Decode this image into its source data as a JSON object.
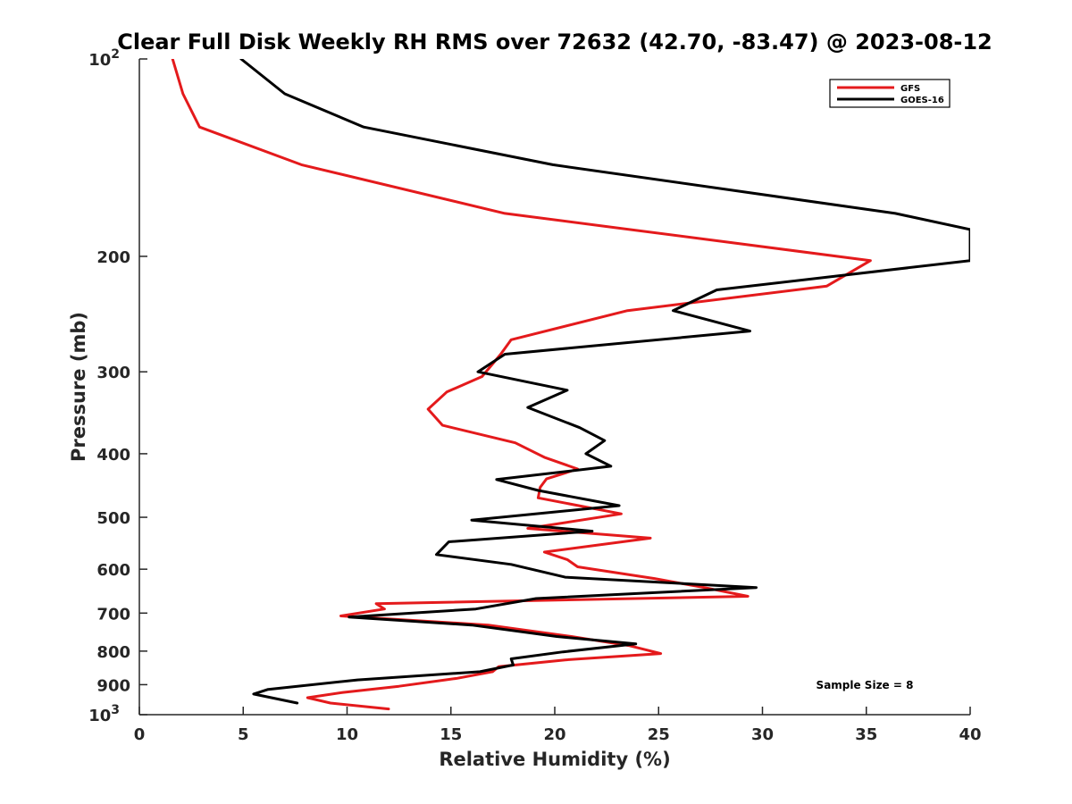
{
  "chart_data": {
    "type": "line",
    "title": "Clear Full Disk Weekly RH RMS over 72632 (42.70, -83.47) @ 2023-08-12",
    "xlabel": "Relative Humidity (%)",
    "ylabel": "Pressure (mb)",
    "xlim": [
      0,
      40
    ],
    "ylim": [
      100,
      1000
    ],
    "y_scale": "log",
    "y_reversed": true,
    "grid": false,
    "legend_position": "top-right",
    "annotation": "Sample Size = 8",
    "x_ticks": [
      {
        "value": 0,
        "label": "0"
      },
      {
        "value": 5,
        "label": "5"
      },
      {
        "value": 10,
        "label": "10"
      },
      {
        "value": 15,
        "label": "15"
      },
      {
        "value": 20,
        "label": "20"
      },
      {
        "value": 25,
        "label": "25"
      },
      {
        "value": 30,
        "label": "30"
      },
      {
        "value": 35,
        "label": "35"
      },
      {
        "value": 40,
        "label": "40"
      }
    ],
    "y_ticks": [
      {
        "value": 100,
        "base": "10",
        "exp": "2"
      },
      {
        "value": 200,
        "base": "200",
        "exp": ""
      },
      {
        "value": 300,
        "base": "300",
        "exp": ""
      },
      {
        "value": 400,
        "base": "400",
        "exp": ""
      },
      {
        "value": 500,
        "base": "500",
        "exp": ""
      },
      {
        "value": 600,
        "base": "600",
        "exp": ""
      },
      {
        "value": 700,
        "base": "700",
        "exp": ""
      },
      {
        "value": 800,
        "base": "800",
        "exp": ""
      },
      {
        "value": 900,
        "base": "900",
        "exp": ""
      },
      {
        "value": 1000,
        "base": "10",
        "exp": "3"
      }
    ],
    "series": [
      {
        "name": "GFS",
        "color": "#e41a1c",
        "points": [
          [
            1.6,
            100
          ],
          [
            2.1,
            113
          ],
          [
            2.9,
            127
          ],
          [
            7.8,
            145
          ],
          [
            17.6,
            172
          ],
          [
            35.2,
            203
          ],
          [
            33.1,
            222
          ],
          [
            23.5,
            242
          ],
          [
            17.9,
            268
          ],
          [
            17.4,
            282
          ],
          [
            16.5,
            305
          ],
          [
            14.8,
            322
          ],
          [
            13.9,
            342
          ],
          [
            14.6,
            362
          ],
          [
            18.1,
            385
          ],
          [
            19.5,
            405
          ],
          [
            21.1,
            422
          ],
          [
            19.6,
            437
          ],
          [
            19.3,
            450
          ],
          [
            19.2,
            467
          ],
          [
            23.2,
            494
          ],
          [
            18.7,
            520
          ],
          [
            24.6,
            538
          ],
          [
            19.5,
            565
          ],
          [
            20.6,
            580
          ],
          [
            21.1,
            595
          ],
          [
            24.8,
            620
          ],
          [
            27.2,
            640
          ],
          [
            29.3,
            660
          ],
          [
            11.4,
            677
          ],
          [
            11.8,
            690
          ],
          [
            9.7,
            707
          ],
          [
            16.8,
            730
          ],
          [
            20.8,
            760
          ],
          [
            23.6,
            785
          ],
          [
            25.1,
            807
          ],
          [
            20.5,
            825
          ],
          [
            17.3,
            845
          ],
          [
            17.0,
            860
          ],
          [
            15.3,
            880
          ],
          [
            12.5,
            905
          ],
          [
            9.8,
            925
          ],
          [
            8.1,
            942
          ],
          [
            9.2,
            960
          ],
          [
            12.0,
            980
          ]
        ]
      },
      {
        "name": "GOES-16",
        "color": "#000000",
        "points": [
          [
            4.9,
            100
          ],
          [
            7.0,
            113
          ],
          [
            10.8,
            127
          ],
          [
            19.9,
            145
          ],
          [
            36.4,
            172
          ],
          [
            40.0,
            182
          ],
          [
            40.0,
            203
          ],
          [
            27.8,
            225
          ],
          [
            25.7,
            242
          ],
          [
            29.4,
            260
          ],
          [
            17.6,
            282
          ],
          [
            16.3,
            300
          ],
          [
            20.6,
            320
          ],
          [
            18.7,
            340
          ],
          [
            21.2,
            365
          ],
          [
            22.4,
            382
          ],
          [
            21.5,
            400
          ],
          [
            22.7,
            418
          ],
          [
            17.2,
            438
          ],
          [
            19.2,
            455
          ],
          [
            23.1,
            480
          ],
          [
            16.0,
            505
          ],
          [
            21.8,
            525
          ],
          [
            14.9,
            545
          ],
          [
            14.3,
            570
          ],
          [
            17.9,
            590
          ],
          [
            20.5,
            617
          ],
          [
            29.7,
            640
          ],
          [
            19.1,
            665
          ],
          [
            16.2,
            690
          ],
          [
            10.1,
            710
          ],
          [
            16.0,
            730
          ],
          [
            20.1,
            760
          ],
          [
            23.9,
            780
          ],
          [
            20.4,
            802
          ],
          [
            17.9,
            822
          ],
          [
            18.0,
            840
          ],
          [
            16.4,
            860
          ],
          [
            10.5,
            885
          ],
          [
            6.2,
            915
          ],
          [
            5.5,
            930
          ],
          [
            7.6,
            960
          ]
        ]
      }
    ]
  }
}
